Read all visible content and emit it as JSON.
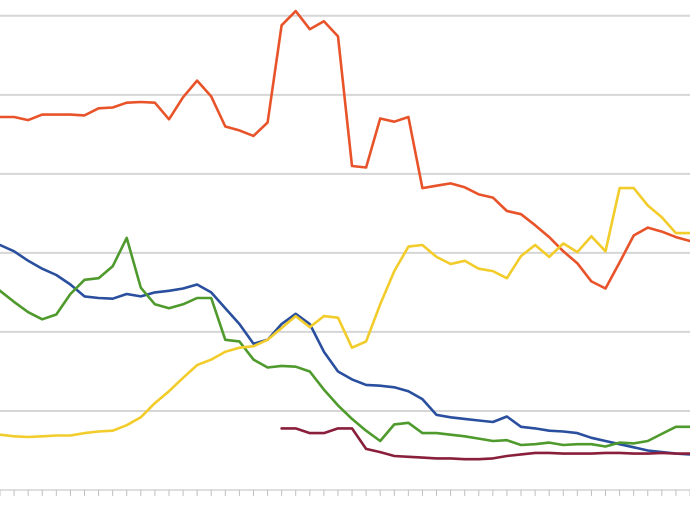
{
  "chart_data": {
    "type": "line",
    "title": "",
    "xlabel": "",
    "ylabel": "",
    "ylim": [
      0,
      6.2
    ],
    "y_gridlines": [
      1,
      2,
      3,
      4,
      5,
      6
    ],
    "x_count": 50,
    "grid": true,
    "legend": "none",
    "series": [
      {
        "color": "#e8532a",
        "values": [
          4.72,
          4.72,
          4.68,
          4.75,
          4.75,
          4.75,
          4.74,
          4.83,
          4.84,
          4.9,
          4.91,
          4.9,
          4.69,
          4.97,
          5.18,
          4.98,
          4.6,
          4.55,
          4.48,
          4.65,
          5.88,
          6.06,
          5.83,
          5.93,
          5.74,
          4.1,
          4.08,
          4.7,
          4.66,
          4.72,
          3.82,
          3.85,
          3.88,
          3.83,
          3.74,
          3.7,
          3.53,
          3.49,
          3.35,
          3.2,
          3.02,
          2.87,
          2.64,
          2.55,
          2.88,
          3.22,
          3.32,
          3.27,
          3.2,
          3.15
        ]
      },
      {
        "color": "#2a4f9e",
        "values": [
          3.1,
          3.02,
          2.9,
          2.8,
          2.72,
          2.6,
          2.45,
          2.43,
          2.42,
          2.48,
          2.45,
          2.5,
          2.52,
          2.55,
          2.6,
          2.5,
          2.3,
          2.1,
          1.85,
          1.9,
          2.1,
          2.23,
          2.1,
          1.75,
          1.5,
          1.4,
          1.33,
          1.32,
          1.3,
          1.25,
          1.15,
          0.95,
          0.92,
          0.9,
          0.88,
          0.86,
          0.93,
          0.8,
          0.78,
          0.75,
          0.74,
          0.72,
          0.66,
          0.62,
          0.58,
          0.54,
          0.5,
          0.48,
          0.46,
          0.45
        ]
      },
      {
        "color": "#4f9a2c",
        "values": [
          2.52,
          2.38,
          2.25,
          2.16,
          2.22,
          2.48,
          2.66,
          2.68,
          2.83,
          3.19,
          2.56,
          2.35,
          2.3,
          2.35,
          2.43,
          2.43,
          1.9,
          1.88,
          1.65,
          1.55,
          1.57,
          1.56,
          1.5,
          1.27,
          1.07,
          0.9,
          0.75,
          0.62,
          0.83,
          0.85,
          0.72,
          0.72,
          0.7,
          0.68,
          0.65,
          0.62,
          0.63,
          0.57,
          0.58,
          0.6,
          0.57,
          0.58,
          0.58,
          0.55,
          0.6,
          0.59,
          0.62,
          0.71,
          0.8,
          0.8
        ]
      },
      {
        "color": "#f2cc2a",
        "values": [
          0.7,
          0.68,
          0.67,
          0.68,
          0.69,
          0.69,
          0.72,
          0.74,
          0.75,
          0.82,
          0.92,
          1.1,
          1.25,
          1.42,
          1.58,
          1.65,
          1.75,
          1.8,
          1.82,
          1.9,
          2.05,
          2.2,
          2.06,
          2.2,
          2.18,
          1.8,
          1.88,
          2.35,
          2.77,
          3.08,
          3.1,
          2.95,
          2.86,
          2.9,
          2.8,
          2.77,
          2.68,
          2.96,
          3.1,
          2.95,
          3.12,
          3.01,
          3.21,
          3.02,
          3.82,
          3.82,
          3.6,
          3.45,
          3.25,
          3.25
        ]
      },
      {
        "color": "#8a1f3b",
        "values": [
          null,
          null,
          null,
          null,
          null,
          null,
          null,
          null,
          null,
          null,
          null,
          null,
          null,
          null,
          null,
          null,
          null,
          null,
          null,
          null,
          0.78,
          0.78,
          0.72,
          0.72,
          0.78,
          0.78,
          0.52,
          0.48,
          0.43,
          0.42,
          0.41,
          0.4,
          0.4,
          0.39,
          0.39,
          0.4,
          0.43,
          0.45,
          0.47,
          0.47,
          0.46,
          0.46,
          0.46,
          0.47,
          0.47,
          0.46,
          0.46,
          0.47,
          0.46,
          0.46
        ]
      }
    ]
  }
}
